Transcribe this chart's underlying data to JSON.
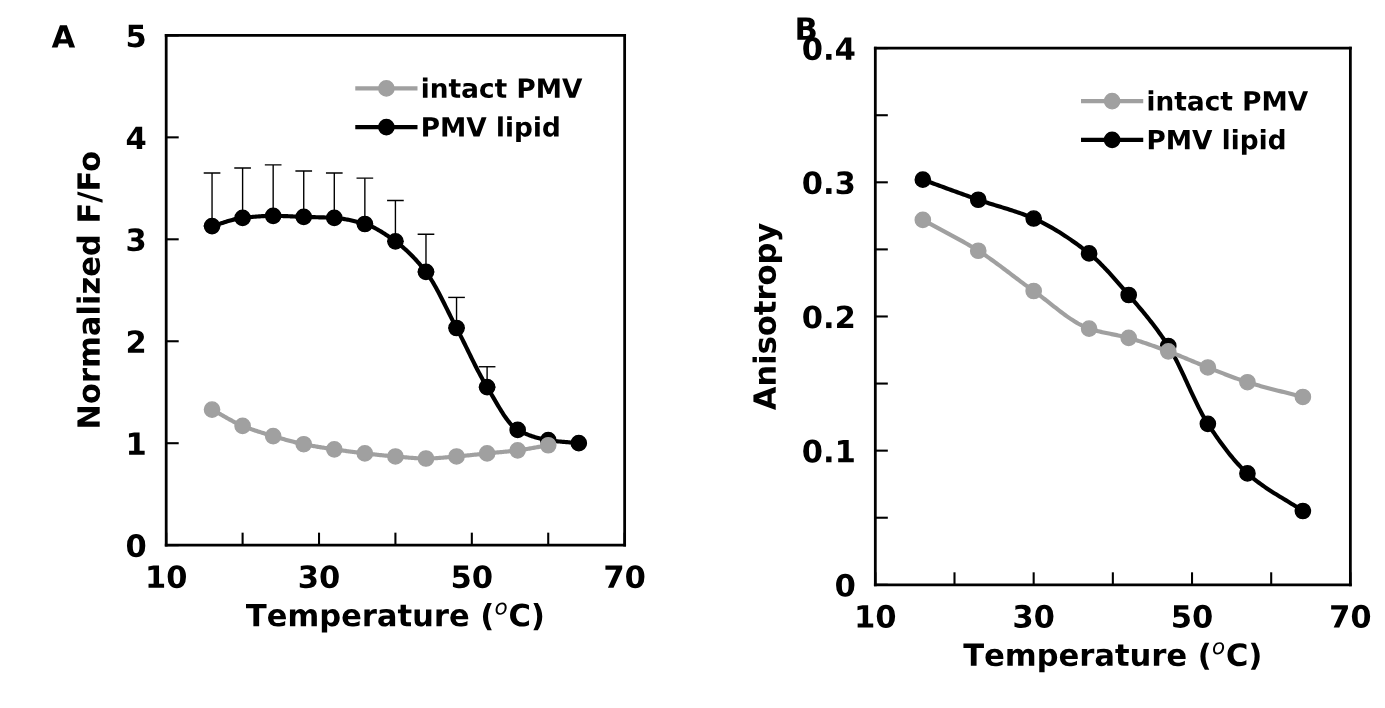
{
  "chart_data": [
    {
      "type": "line",
      "title": "A",
      "xlabel": "Temperature ($^{o}$C)",
      "ylabel": "Normalized F/Fo",
      "x": [
        16,
        20,
        24,
        28,
        32,
        36,
        40,
        44,
        48,
        52,
        56,
        60,
        64
      ],
      "series": [
        {
          "name": "intact PMV",
          "color": "#a0a0a0",
          "values": [
            1.33,
            1.17,
            1.07,
            0.99,
            0.94,
            0.9,
            0.87,
            0.85,
            0.87,
            0.9,
            0.93,
            0.98,
            null
          ]
        },
        {
          "name": "PMV lipid",
          "color": "#000000",
          "values": [
            3.13,
            3.21,
            3.23,
            3.22,
            3.21,
            3.15,
            2.98,
            2.68,
            2.13,
            1.55,
            1.13,
            1.03,
            1.0
          ],
          "errors": [
            [
              3.13,
              3.65
            ],
            [
              3.21,
              3.7
            ],
            [
              3.23,
              3.73
            ],
            [
              3.22,
              3.67
            ],
            [
              3.21,
              3.65
            ],
            [
              3.15,
              3.6
            ],
            [
              2.98,
              3.38
            ],
            [
              2.68,
              3.05
            ],
            [
              2.13,
              2.43
            ],
            [
              1.55,
              1.75
            ],
            null,
            null,
            null
          ]
        }
      ],
      "xlim": [
        10,
        70
      ],
      "xticks": [
        10,
        {
          "value": 20,
          "label": null
        },
        30,
        {
          "value": 40,
          "label": null
        },
        50,
        {
          "value": 60,
          "label": null
        },
        70
      ],
      "ylim": [
        0,
        5
      ],
      "yticks": [
        0,
        1,
        2,
        3,
        4,
        5
      ],
      "grid": false,
      "legend": "top right",
      "marker": "circle",
      "line_style": "solid"
    },
    {
      "type": "line",
      "title": "B",
      "xlabel": "Temperature ($^{o}$C)",
      "ylabel": "Anisotropy",
      "x": [
        16,
        23,
        30,
        37,
        42,
        47,
        52,
        57,
        64
      ],
      "series": [
        {
          "name": "intact PMV",
          "color": "#a0a0a0",
          "values": [
            0.272,
            0.249,
            0.219,
            0.191,
            0.184,
            0.174,
            0.162,
            0.151,
            0.14
          ]
        },
        {
          "name": "PMV lipid",
          "color": "#000000",
          "values": [
            0.302,
            0.287,
            0.273,
            0.247,
            0.216,
            0.178,
            0.12,
            0.083,
            0.055
          ]
        }
      ],
      "xlim": [
        10,
        70
      ],
      "xticks": [
        10,
        {
          "value": 20,
          "label": null
        },
        30,
        {
          "value": 40,
          "label": null
        },
        50,
        {
          "value": 60,
          "label": null
        },
        70
      ],
      "ylim": [
        0,
        0.4
      ],
      "yticks": [
        0,
        {
          "value": 0.05,
          "label": null
        },
        0.1,
        {
          "value": 0.15,
          "label": null
        },
        0.2,
        {
          "value": 0.25,
          "label": null
        },
        0.3,
        {
          "value": 0.35,
          "label": null
        },
        0.4
      ],
      "grid": false,
      "legend": "top right",
      "marker": "circle",
      "line_style": "solid"
    }
  ]
}
